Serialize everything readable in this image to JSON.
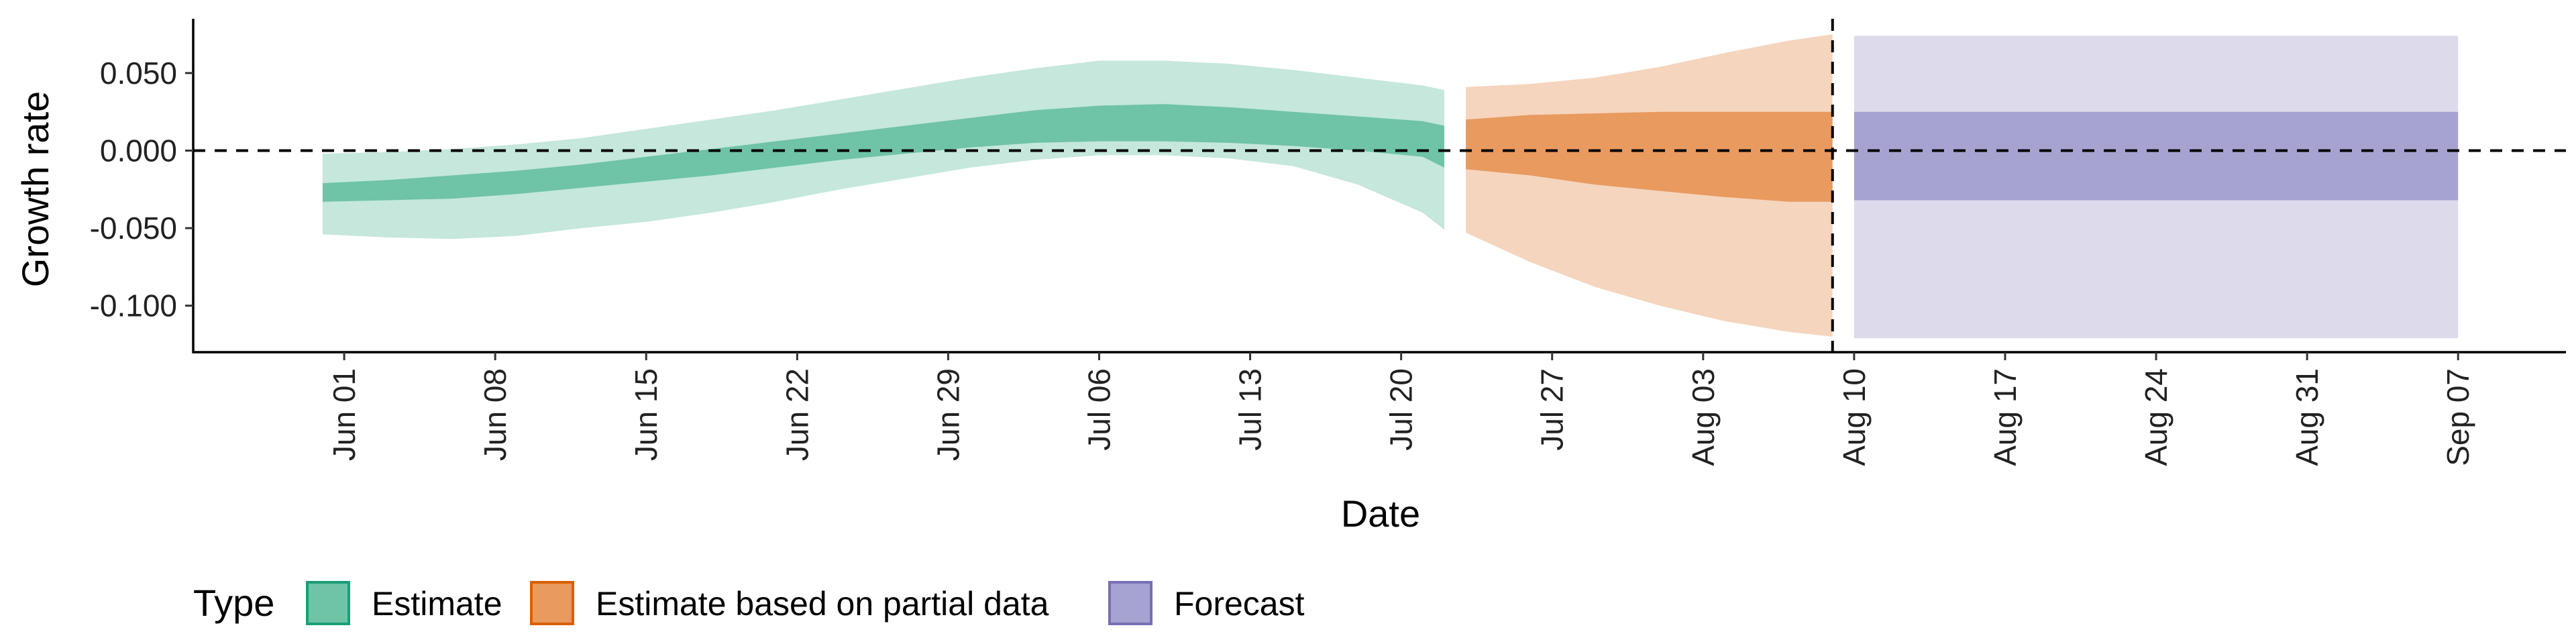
{
  "chart_data": {
    "type": "area",
    "xlabel": "Date",
    "ylabel": "Growth rate",
    "x_ticks": [
      "Jun 01",
      "Jun 08",
      "Jun 15",
      "Jun 22",
      "Jun 29",
      "Jul 06",
      "Jul 13",
      "Jul 20",
      "Jul 27",
      "Aug 03",
      "Aug 10",
      "Aug 17",
      "Aug 24",
      "Aug 31",
      "Sep 07"
    ],
    "y_ticks": [
      "0.050",
      "0.000",
      "-0.050",
      "-0.100"
    ],
    "y_tick_values": [
      0.05,
      0.0,
      -0.05,
      -0.1
    ],
    "ylim": [
      -0.13,
      0.085
    ],
    "xlim": [
      "2020-05-25",
      "2020-09-12"
    ],
    "reference_lines": {
      "horizontal_y": 0.0,
      "vertical_x": "2020-08-09"
    },
    "legend": {
      "title": "Type",
      "position": "bottom-left"
    },
    "colors": {
      "Estimate": {
        "inner": "#6fc3a6",
        "outer": "#c5e7dc",
        "key": "#6fc3a6",
        "key_border": "#1b9e77"
      },
      "Estimate based on partial data": {
        "inner": "#e89a5f",
        "outer": "#f5d5bd",
        "key": "#e89a5f",
        "key_border": "#d95f02"
      },
      "Forecast": {
        "inner": "#a7a3d1",
        "outer": "#dcdaeb",
        "key": "#a7a3d1",
        "key_border": "#7570b3"
      }
    },
    "series": [
      {
        "name": "Estimate",
        "points": [
          {
            "x": "2020-05-31",
            "lo90": -0.054,
            "lo50": -0.033,
            "hi50": -0.021,
            "hi90": -0.002
          },
          {
            "x": "2020-06-03",
            "lo90": -0.056,
            "lo50": -0.032,
            "hi50": -0.019,
            "hi90": -0.001
          },
          {
            "x": "2020-06-06",
            "lo90": -0.057,
            "lo50": -0.031,
            "hi50": -0.016,
            "hi90": 0.001
          },
          {
            "x": "2020-06-09",
            "lo90": -0.055,
            "lo50": -0.028,
            "hi50": -0.013,
            "hi90": 0.004
          },
          {
            "x": "2020-06-12",
            "lo90": -0.05,
            "lo50": -0.024,
            "hi50": -0.009,
            "hi90": 0.008
          },
          {
            "x": "2020-06-15",
            "lo90": -0.046,
            "lo50": -0.02,
            "hi50": -0.004,
            "hi90": 0.014
          },
          {
            "x": "2020-06-18",
            "lo90": -0.04,
            "lo50": -0.016,
            "hi50": 0.001,
            "hi90": 0.02
          },
          {
            "x": "2020-06-21",
            "lo90": -0.033,
            "lo50": -0.011,
            "hi50": 0.006,
            "hi90": 0.026
          },
          {
            "x": "2020-06-24",
            "lo90": -0.025,
            "lo50": -0.006,
            "hi50": 0.011,
            "hi90": 0.033
          },
          {
            "x": "2020-06-27",
            "lo90": -0.018,
            "lo50": -0.002,
            "hi50": 0.016,
            "hi90": 0.04
          },
          {
            "x": "2020-06-30",
            "lo90": -0.011,
            "lo50": 0.002,
            "hi50": 0.021,
            "hi90": 0.047
          },
          {
            "x": "2020-07-03",
            "lo90": -0.006,
            "lo50": 0.005,
            "hi50": 0.026,
            "hi90": 0.053
          },
          {
            "x": "2020-07-06",
            "lo90": -0.003,
            "lo50": 0.006,
            "hi50": 0.029,
            "hi90": 0.058
          },
          {
            "x": "2020-07-09",
            "lo90": -0.003,
            "lo50": 0.006,
            "hi50": 0.03,
            "hi90": 0.058
          },
          {
            "x": "2020-07-12",
            "lo90": -0.005,
            "lo50": 0.005,
            "hi50": 0.028,
            "hi90": 0.056
          },
          {
            "x": "2020-07-15",
            "lo90": -0.01,
            "lo50": 0.003,
            "hi50": 0.025,
            "hi90": 0.052
          },
          {
            "x": "2020-07-18",
            "lo90": -0.022,
            "lo50": 0.0,
            "hi50": 0.022,
            "hi90": 0.047
          },
          {
            "x": "2020-07-21",
            "lo90": -0.04,
            "lo50": -0.004,
            "hi50": 0.019,
            "hi90": 0.042
          },
          {
            "x": "2020-07-22",
            "lo90": -0.051,
            "lo50": -0.011,
            "hi50": 0.016,
            "hi90": 0.039
          }
        ]
      },
      {
        "name": "Estimate based on partial data",
        "points": [
          {
            "x": "2020-07-23",
            "lo90": -0.053,
            "lo50": -0.012,
            "hi50": 0.02,
            "hi90": 0.041
          },
          {
            "x": "2020-07-26",
            "lo90": -0.072,
            "lo50": -0.016,
            "hi50": 0.023,
            "hi90": 0.043
          },
          {
            "x": "2020-07-29",
            "lo90": -0.088,
            "lo50": -0.022,
            "hi50": 0.024,
            "hi90": 0.047
          },
          {
            "x": "2020-08-01",
            "lo90": -0.1,
            "lo50": -0.026,
            "hi50": 0.025,
            "hi90": 0.054
          },
          {
            "x": "2020-08-04",
            "lo90": -0.11,
            "lo50": -0.03,
            "hi50": 0.025,
            "hi90": 0.063
          },
          {
            "x": "2020-08-07",
            "lo90": -0.117,
            "lo50": -0.033,
            "hi50": 0.025,
            "hi90": 0.071
          },
          {
            "x": "2020-08-09",
            "lo90": -0.12,
            "lo50": -0.033,
            "hi50": 0.025,
            "hi90": 0.075
          }
        ]
      },
      {
        "name": "Forecast",
        "points": [
          {
            "x": "2020-08-10",
            "lo90": -0.121,
            "lo50": -0.032,
            "hi50": 0.025,
            "hi90": 0.074
          },
          {
            "x": "2020-09-07",
            "lo90": -0.121,
            "lo50": -0.032,
            "hi50": 0.025,
            "hi90": 0.074
          }
        ]
      }
    ]
  }
}
